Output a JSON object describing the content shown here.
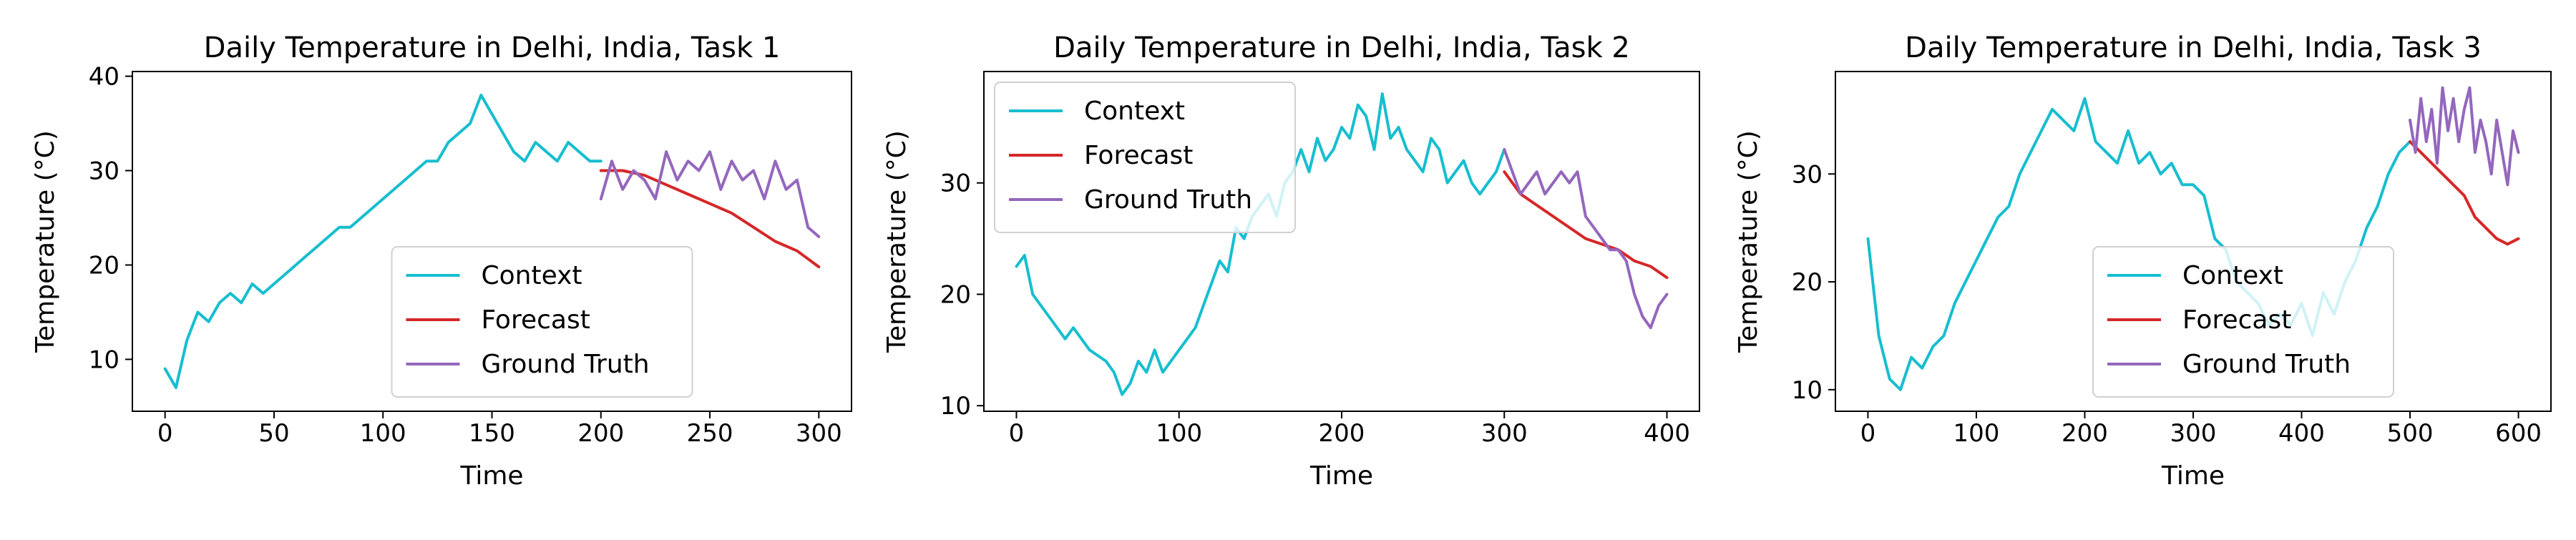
{
  "figure": {
    "colors": {
      "context": "#17becf",
      "forecast": "#d62728",
      "ground_truth": "#9467bd",
      "axis": "#000000",
      "legend_edge": "#d0d0d0"
    }
  },
  "chart_data": [
    {
      "type": "line",
      "title": "Daily Temperature in Delhi, India, Task 1",
      "xlabel": "Time",
      "ylabel": "Temperature (°C)",
      "xlim": [
        -15,
        315
      ],
      "ylim": [
        4.5,
        40.5
      ],
      "xticks": [
        0,
        50,
        100,
        150,
        200,
        250,
        300
      ],
      "yticks": [
        10,
        20,
        30,
        40
      ],
      "grid": false,
      "legend_position": "lower-center",
      "legend": [
        "Context",
        "Forecast",
        "Ground Truth"
      ],
      "series": [
        {
          "name": "Context",
          "color_key": "context",
          "x": [
            0,
            5,
            10,
            15,
            20,
            25,
            30,
            35,
            40,
            45,
            50,
            55,
            60,
            65,
            70,
            75,
            80,
            85,
            90,
            95,
            100,
            105,
            110,
            115,
            120,
            125,
            130,
            135,
            140,
            145,
            150,
            155,
            160,
            165,
            170,
            175,
            180,
            185,
            190,
            195,
            200
          ],
          "values": [
            9,
            7,
            12,
            15,
            14,
            16,
            17,
            16,
            18,
            17,
            18,
            19,
            20,
            21,
            22,
            23,
            24,
            24,
            25,
            26,
            27,
            28,
            29,
            30,
            31,
            31,
            33,
            34,
            35,
            38,
            36,
            34,
            32,
            31,
            33,
            32,
            31,
            33,
            32,
            31,
            31
          ]
        },
        {
          "name": "Forecast",
          "color_key": "forecast",
          "x": [
            200,
            210,
            220,
            230,
            240,
            250,
            260,
            270,
            280,
            290,
            300
          ],
          "values": [
            30,
            30,
            29.5,
            28.5,
            27.5,
            26.5,
            25.5,
            24,
            22.5,
            21.5,
            19.8
          ]
        },
        {
          "name": "Ground Truth",
          "color_key": "ground_truth",
          "x": [
            200,
            205,
            210,
            215,
            220,
            225,
            230,
            235,
            240,
            245,
            250,
            255,
            260,
            265,
            270,
            275,
            280,
            285,
            290,
            295,
            300
          ],
          "values": [
            27,
            31,
            28,
            30,
            29,
            27,
            32,
            29,
            31,
            30,
            32,
            28,
            31,
            29,
            30,
            27,
            31,
            28,
            29,
            24,
            23
          ]
        }
      ]
    },
    {
      "type": "line",
      "title": "Daily Temperature in Delhi, India, Task 2",
      "xlabel": "Time",
      "ylabel": "Temperature (°C)",
      "xlim": [
        -20,
        420
      ],
      "ylim": [
        9.5,
        40
      ],
      "xticks": [
        0,
        100,
        200,
        300,
        400
      ],
      "yticks": [
        10,
        20,
        30
      ],
      "grid": false,
      "legend_position": "upper-left",
      "legend": [
        "Context",
        "Forecast",
        "Ground Truth"
      ],
      "series": [
        {
          "name": "Context",
          "color_key": "context",
          "x": [
            0,
            5,
            10,
            15,
            20,
            25,
            30,
            35,
            40,
            45,
            50,
            55,
            60,
            65,
            70,
            75,
            80,
            85,
            90,
            95,
            100,
            105,
            110,
            115,
            120,
            125,
            130,
            135,
            140,
            145,
            150,
            155,
            160,
            165,
            170,
            175,
            180,
            185,
            190,
            195,
            200,
            205,
            210,
            215,
            220,
            225,
            230,
            235,
            240,
            245,
            250,
            255,
            260,
            265,
            270,
            275,
            280,
            285,
            290,
            295,
            300
          ],
          "values": [
            22.5,
            23.5,
            20,
            19,
            18,
            17,
            16,
            17,
            16,
            15,
            14.5,
            14,
            13,
            11,
            12,
            14,
            13,
            15,
            13,
            14,
            15,
            16,
            17,
            19,
            21,
            23,
            22,
            26,
            25,
            27,
            28,
            29,
            27,
            30,
            31,
            33,
            31,
            34,
            32,
            33,
            35,
            34,
            37,
            36,
            33,
            38,
            34,
            35,
            33,
            32,
            31,
            34,
            33,
            30,
            31,
            32,
            30,
            29,
            30,
            31,
            33
          ]
        },
        {
          "name": "Forecast",
          "color_key": "forecast",
          "x": [
            300,
            310,
            320,
            330,
            340,
            350,
            360,
            370,
            380,
            390,
            400
          ],
          "values": [
            31,
            29,
            28,
            27,
            26,
            25,
            24.5,
            24,
            23,
            22.5,
            21.5
          ]
        },
        {
          "name": "Ground Truth",
          "color_key": "ground_truth",
          "x": [
            300,
            305,
            310,
            315,
            320,
            325,
            330,
            335,
            340,
            345,
            350,
            355,
            360,
            365,
            370,
            375,
            380,
            385,
            390,
            395,
            400
          ],
          "values": [
            33,
            31,
            29,
            30,
            31,
            29,
            30,
            31,
            30,
            31,
            27,
            26,
            25,
            24,
            24,
            23,
            20,
            18,
            17,
            19,
            20
          ]
        }
      ]
    },
    {
      "type": "line",
      "title": "Daily Temperature in Delhi, India, Task 3",
      "xlabel": "Time",
      "ylabel": "Temperature (°C)",
      "xlim": [
        -30,
        630
      ],
      "ylim": [
        8,
        39.5
      ],
      "xticks": [
        0,
        100,
        200,
        300,
        400,
        500,
        600
      ],
      "yticks": [
        10,
        20,
        30
      ],
      "grid": false,
      "legend_position": "lower-center",
      "legend": [
        "Context",
        "Forecast",
        "Ground Truth"
      ],
      "series": [
        {
          "name": "Context",
          "color_key": "context",
          "x": [
            0,
            10,
            20,
            30,
            40,
            50,
            60,
            70,
            80,
            90,
            100,
            110,
            120,
            130,
            140,
            150,
            160,
            170,
            180,
            190,
            200,
            210,
            220,
            230,
            240,
            250,
            260,
            270,
            280,
            290,
            300,
            310,
            320,
            330,
            340,
            350,
            360,
            370,
            380,
            390,
            400,
            410,
            420,
            430,
            440,
            450,
            460,
            470,
            480,
            490,
            500
          ],
          "values": [
            24,
            15,
            11,
            10,
            13,
            12,
            14,
            15,
            18,
            20,
            22,
            24,
            26,
            27,
            30,
            32,
            34,
            36,
            35,
            34,
            37,
            33,
            32,
            31,
            34,
            31,
            32,
            30,
            31,
            29,
            29,
            28,
            24,
            23,
            20,
            19,
            18,
            16,
            17,
            16,
            18,
            15,
            19,
            17,
            20,
            22,
            25,
            27,
            30,
            32,
            33
          ]
        },
        {
          "name": "Forecast",
          "color_key": "forecast",
          "x": [
            500,
            510,
            520,
            530,
            540,
            550,
            560,
            570,
            580,
            590,
            600
          ],
          "values": [
            33,
            32,
            31,
            30,
            29,
            28,
            26,
            25,
            24,
            23.5,
            24
          ]
        },
        {
          "name": "Ground Truth",
          "color_key": "ground_truth",
          "x": [
            500,
            505,
            510,
            515,
            520,
            525,
            530,
            535,
            540,
            545,
            550,
            555,
            560,
            565,
            570,
            575,
            580,
            585,
            590,
            595,
            600
          ],
          "values": [
            35,
            32,
            37,
            33,
            36,
            31,
            38,
            34,
            37,
            33,
            36,
            38,
            32,
            35,
            33,
            30,
            35,
            32,
            29,
            34,
            32
          ]
        }
      ]
    }
  ]
}
